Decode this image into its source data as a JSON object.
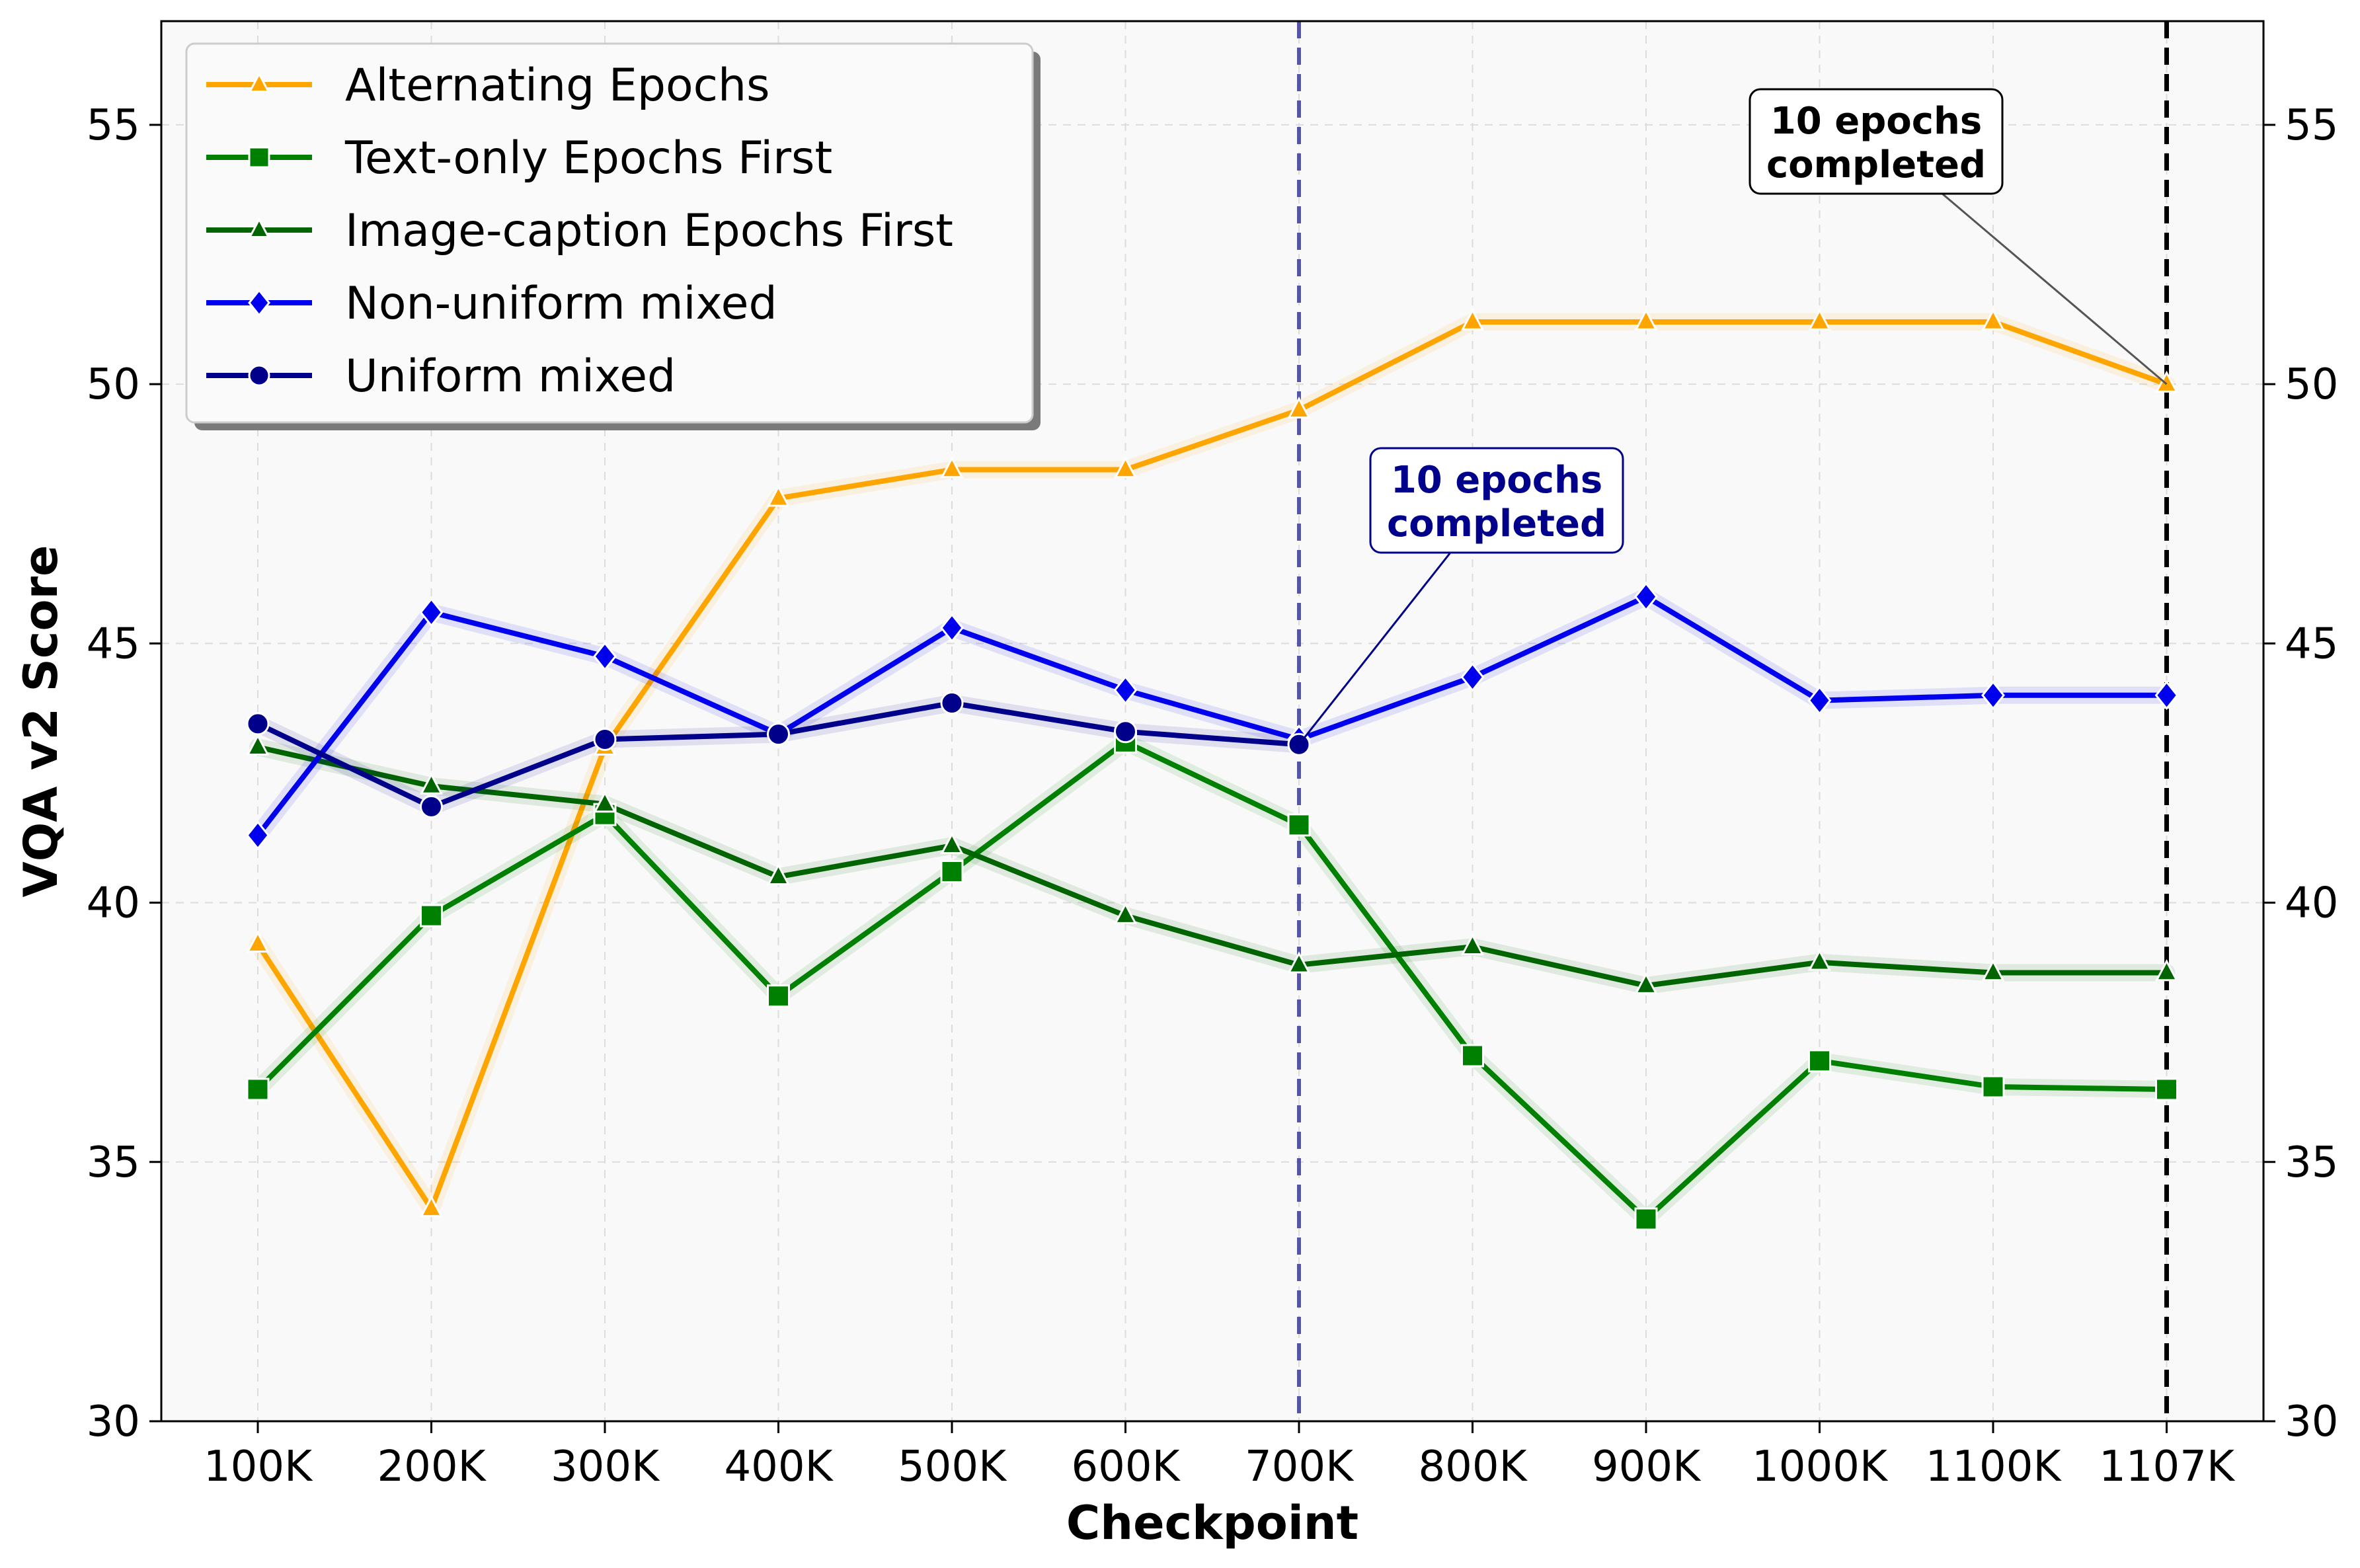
{
  "chart_data": {
    "type": "line",
    "title": "",
    "xlabel": "Checkpoint",
    "ylabel": "VQA v2 Score",
    "categories": [
      "100K",
      "200K",
      "300K",
      "400K",
      "500K",
      "600K",
      "700K",
      "800K",
      "900K",
      "1000K",
      "1100K",
      "1107K"
    ],
    "ylim": [
      30,
      57
    ],
    "yticks": [
      "30",
      "35",
      "40",
      "45",
      "50",
      "55"
    ],
    "grid": true,
    "legend_position": "top-left",
    "right_axis": true,
    "series": [
      {
        "name": "Alternating Epochs",
        "color": "#FFA500",
        "marker": "triangle",
        "values": [
          39.2,
          34.1,
          43.0,
          47.8,
          48.35,
          48.35,
          49.5,
          51.2,
          51.2,
          51.2,
          51.2,
          50.0
        ]
      },
      {
        "name": "Text-only Epochs First",
        "color": "#008000",
        "marker": "square",
        "values": [
          36.4,
          39.75,
          41.7,
          38.2,
          40.6,
          43.1,
          41.5,
          37.05,
          33.9,
          36.95,
          36.45,
          36.4
        ]
      },
      {
        "name": "Image-caption Epochs First",
        "color": "#006400",
        "marker": "triangle",
        "values": [
          43.0,
          42.25,
          41.9,
          40.5,
          41.1,
          39.75,
          38.8,
          39.15,
          38.4,
          38.85,
          38.65,
          38.65
        ]
      },
      {
        "name": "Non-uniform mixed",
        "color": "#0000EE",
        "marker": "diamond",
        "values": [
          41.3,
          45.6,
          44.75,
          43.25,
          45.3,
          44.1,
          43.15,
          44.35,
          45.9,
          43.9,
          44.0,
          44.0
        ]
      },
      {
        "name": "Uniform mixed",
        "color": "#00008B",
        "marker": "circle",
        "values": [
          43.45,
          41.85,
          43.15,
          43.25,
          43.85,
          43.3,
          43.05,
          null,
          null,
          null,
          null,
          null
        ]
      }
    ],
    "annotations": [
      {
        "text_line1": "10 epochs",
        "text_line2": "completed",
        "x": "700K",
        "y": 43.05,
        "color": "#00008B",
        "vline_color": "#3A3A9A"
      },
      {
        "text_line1": "10 epochs",
        "text_line2": "completed",
        "x": "1107K",
        "y": 50.0,
        "color": "#000000",
        "vline_color": "#000000"
      }
    ]
  }
}
